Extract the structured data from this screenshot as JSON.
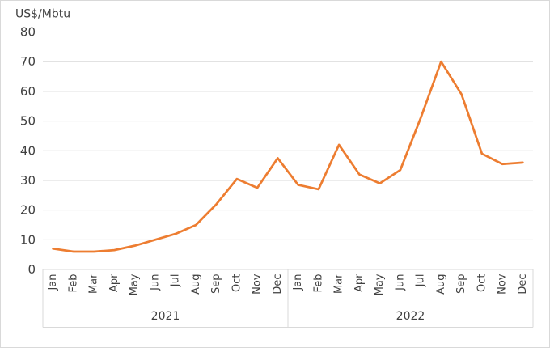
{
  "chart_data": {
    "type": "line",
    "title": "US$/Mbtu",
    "unit_label": "US$/Mbtu",
    "xlabel": "",
    "ylabel": "US$/Mbtu",
    "ylim": [
      0,
      80
    ],
    "y_ticks": [
      0,
      10,
      20,
      30,
      40,
      50,
      60,
      70,
      80
    ],
    "grid": true,
    "legend": "none",
    "year_groups": [
      {
        "label": "2021",
        "months": [
          "Jan",
          "Feb",
          "Mar",
          "Apr",
          "May",
          "Jun",
          "Jul",
          "Aug",
          "Sep",
          "Oct",
          "Nov",
          "Dec"
        ]
      },
      {
        "label": "2022",
        "months": [
          "Jan",
          "Feb",
          "Mar",
          "Apr",
          "May",
          "Jun",
          "Jul",
          "Aug",
          "Sep",
          "Oct",
          "Nov",
          "Dec"
        ]
      }
    ],
    "categories": [
      "Jan 2021",
      "Feb 2021",
      "Mar 2021",
      "Apr 2021",
      "May 2021",
      "Jun 2021",
      "Jul 2021",
      "Aug 2021",
      "Sep 2021",
      "Oct 2021",
      "Nov 2021",
      "Dec 2021",
      "Jan 2022",
      "Feb 2022",
      "Mar 2022",
      "Apr 2022",
      "May 2022",
      "Jun 2022",
      "Jul 2022",
      "Aug 2022",
      "Sep 2022",
      "Oct 2022",
      "Nov 2022",
      "Dec 2022"
    ],
    "values": [
      7,
      6,
      6,
      6.5,
      8,
      10,
      12,
      15,
      22,
      30.5,
      27.5,
      37.5,
      28.5,
      27,
      42,
      32,
      29,
      33.5,
      51,
      70,
      59,
      39,
      35.5,
      36
    ],
    "colors": {
      "line": "#ED7D31",
      "grid": "#D9D9D9",
      "border": "#D9D9D9",
      "text": "#404040"
    }
  }
}
